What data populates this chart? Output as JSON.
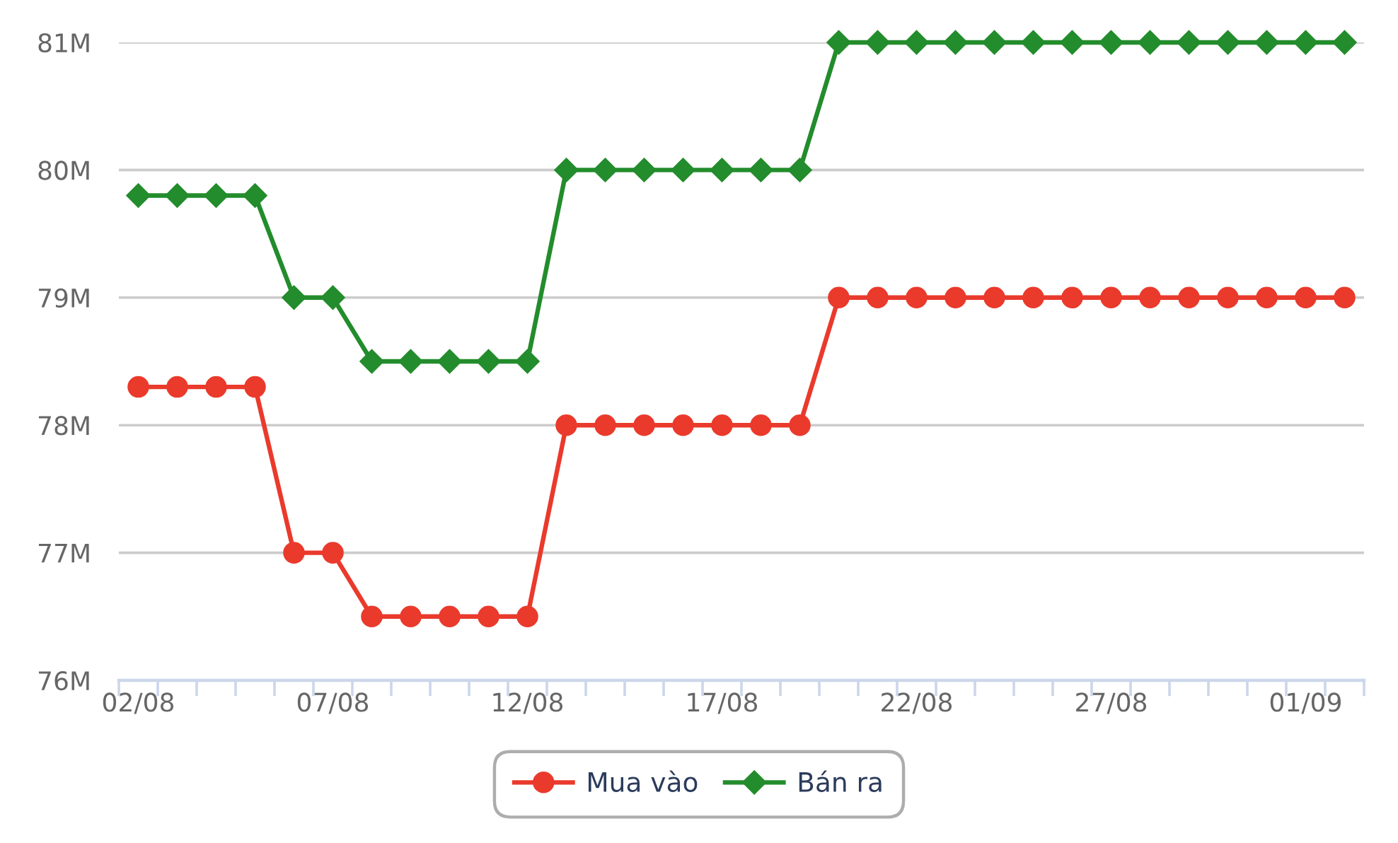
{
  "chart_data": {
    "type": "line",
    "categories": [
      "02/08",
      null,
      null,
      null,
      null,
      "07/08",
      null,
      null,
      null,
      null,
      "12/08",
      null,
      null,
      null,
      null,
      "17/08",
      null,
      null,
      null,
      null,
      "22/08",
      null,
      null,
      null,
      null,
      "27/08",
      null,
      null,
      null,
      null,
      "01/09",
      null
    ],
    "series": [
      {
        "name": "Mua vào",
        "color": "#ea3a2c",
        "marker": "circle",
        "values": [
          78.3,
          78.3,
          78.3,
          78.3,
          77,
          77,
          76.5,
          76.5,
          76.5,
          76.5,
          76.5,
          78,
          78,
          78,
          78,
          78,
          78,
          78,
          79,
          79,
          79,
          79,
          79,
          79,
          79,
          79,
          79,
          79,
          79,
          79,
          79,
          79
        ]
      },
      {
        "name": "Bán ra",
        "color": "#238c2c",
        "marker": "diamond",
        "values": [
          79.8,
          79.8,
          79.8,
          79.8,
          79,
          79,
          78.5,
          78.5,
          78.5,
          78.5,
          78.5,
          80,
          80,
          80,
          80,
          80,
          80,
          80,
          81,
          81,
          81,
          81,
          81,
          81,
          81,
          81,
          81,
          81,
          81,
          81,
          81,
          81
        ]
      }
    ],
    "ylim": [
      76,
      81
    ],
    "yticks": [
      {
        "value": 76,
        "label": "76M"
      },
      {
        "value": 77,
        "label": "77M"
      },
      {
        "value": 78,
        "label": "78M"
      },
      {
        "value": 79,
        "label": "79M"
      },
      {
        "value": 80,
        "label": "80M"
      },
      {
        "value": 81,
        "label": "81M"
      }
    ],
    "grid": "y",
    "legend": "bottom",
    "line_style": "solid"
  }
}
